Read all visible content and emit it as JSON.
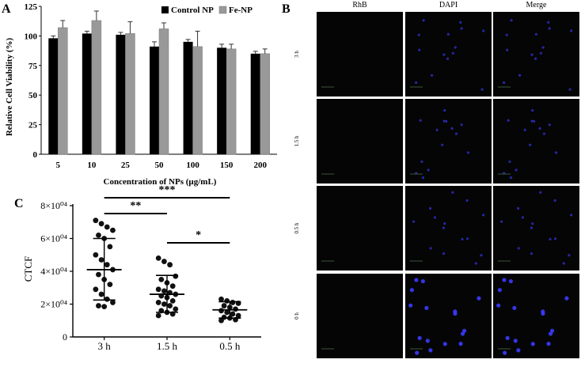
{
  "panels": {
    "a_letter": "A",
    "b_letter": "B",
    "c_letter": "C"
  },
  "chart_data": [
    {
      "panel": "A",
      "type": "bar",
      "title": "",
      "xlabel": "Concentration of NPs (µg/mL)",
      "ylabel": "Relative Cell Viability (%)",
      "ylim": [
        0,
        125
      ],
      "yticks": [
        0,
        25,
        50,
        75,
        100,
        125
      ],
      "categories": [
        "5",
        "10",
        "25",
        "50",
        "100",
        "150",
        "200"
      ],
      "legend_position": "top-right",
      "grid": false,
      "series": [
        {
          "name": "Control NP",
          "color": "#000000",
          "values": [
            98,
            102,
            101,
            91,
            95,
            90,
            85
          ],
          "errors": [
            2,
            2,
            2,
            4,
            2,
            3,
            2
          ]
        },
        {
          "name": "Fe-NP",
          "color": "#999999",
          "values": [
            107,
            113,
            102,
            106,
            91,
            89,
            85
          ],
          "errors": [
            6,
            8,
            10,
            5,
            13,
            4,
            4
          ]
        }
      ]
    },
    {
      "panel": "C",
      "type": "scatter",
      "title": "",
      "xlabel": "",
      "ylabel": "CTCF",
      "ylim": [
        0,
        80000
      ],
      "yticks": [
        0,
        20000,
        40000,
        60000,
        80000
      ],
      "ytick_labels": [
        "0",
        "2×10⁰⁴",
        "4×10⁰⁴",
        "6×10⁰⁴",
        "8×10⁰⁴"
      ],
      "categories": [
        "3 h",
        "1.5 h",
        "0.5 h"
      ],
      "grid": false,
      "groups": [
        {
          "category": "3 h",
          "mean": 41000,
          "sd_low": 22500,
          "sd_high": 60000,
          "points": [
            71000,
            69000,
            67000,
            65000,
            62000,
            60000,
            55000,
            50000,
            47000,
            44000,
            41000,
            38000,
            35000,
            32000,
            29000,
            26000,
            23000,
            21000,
            19000,
            18500
          ]
        },
        {
          "category": "1.5 h",
          "mean": 26000,
          "sd_low": 15000,
          "sd_high": 37500,
          "points": [
            48000,
            46000,
            44000,
            37000,
            35000,
            33000,
            31000,
            29000,
            28000,
            27000,
            26000,
            25000,
            24000,
            22000,
            21000,
            20000,
            19000,
            17000,
            16000,
            15000,
            14000,
            13000
          ]
        },
        {
          "category": "0.5 h",
          "mean": 16500,
          "sd_low": 11500,
          "sd_high": 21500,
          "points": [
            23000,
            22000,
            21000,
            20500,
            19000,
            18000,
            17000,
            16000,
            15000,
            14000,
            13000,
            12000,
            11500,
            10500,
            10000
          ]
        }
      ],
      "significance": [
        {
          "from": "3 h",
          "to": "0.5 h",
          "label": "***"
        },
        {
          "from": "3 h",
          "to": "1.5 h",
          "label": "**"
        },
        {
          "from": "1.5 h",
          "to": "0.5 h",
          "label": "*"
        }
      ]
    }
  ],
  "micrograph_grid": {
    "panel": "B",
    "columns": [
      "RhB",
      "DAPI",
      "Merge"
    ],
    "rows": [
      "3 h",
      "1.5 h",
      "0.5 h",
      "0 h"
    ]
  }
}
